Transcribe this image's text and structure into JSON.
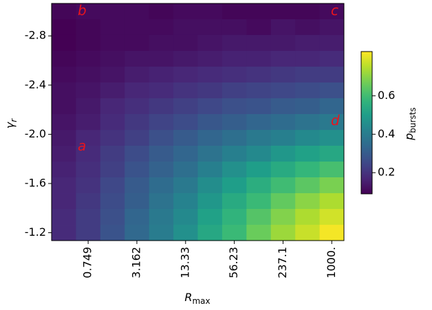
{
  "chart_data": {
    "type": "heatmap",
    "x_label": {
      "text": "R",
      "sub": "max"
    },
    "y_label": {
      "text": "γ",
      "sub": "r"
    },
    "colorbar_label": {
      "text": "p",
      "sub": "bursts"
    },
    "categories": [
      null,
      "0.749",
      null,
      "3.162",
      null,
      "13.33",
      null,
      "56.23",
      null,
      "237.1",
      null,
      "1000."
    ],
    "y": [
      -3.0,
      -2.871,
      -2.743,
      -2.614,
      -2.486,
      -2.357,
      -2.229,
      -2.1,
      -1.971,
      -1.843,
      -1.714,
      -1.586,
      -1.457,
      -1.329,
      -1.2
    ],
    "ylim": [
      -1.136,
      -3.064
    ],
    "yticks": [
      -2.8,
      -2.4,
      {
        "value": -2,
        "label": "-2.0"
      },
      -1.6,
      -1.2
    ],
    "colormap": "viridis",
    "clim": [
      0.09,
      0.83
    ],
    "cticks": [
      0.2,
      0.4,
      0.6
    ],
    "annotations": [
      "a",
      "b",
      "c",
      "d"
    ],
    "values": [
      [
        0.1,
        0.11,
        0.11,
        0.11,
        0.1,
        0.11,
        0.11,
        0.1,
        0.1,
        0.1,
        0.1,
        0.11
      ],
      [
        0.09,
        0.1,
        0.11,
        0.11,
        0.11,
        0.12,
        0.12,
        0.12,
        0.11,
        0.13,
        0.12,
        0.13
      ],
      [
        0.09,
        0.1,
        0.11,
        0.11,
        0.12,
        0.12,
        0.13,
        0.14,
        0.14,
        0.14,
        0.15,
        0.15
      ],
      [
        0.1,
        0.11,
        0.12,
        0.13,
        0.13,
        0.14,
        0.15,
        0.16,
        0.16,
        0.17,
        0.17,
        0.18
      ],
      [
        0.11,
        0.12,
        0.13,
        0.15,
        0.16,
        0.17,
        0.18,
        0.19,
        0.2,
        0.21,
        0.22,
        0.22
      ],
      [
        0.12,
        0.13,
        0.15,
        0.17,
        0.18,
        0.2,
        0.21,
        0.23,
        0.24,
        0.25,
        0.26,
        0.27
      ],
      [
        0.12,
        0.14,
        0.17,
        0.19,
        0.21,
        0.23,
        0.25,
        0.27,
        0.28,
        0.3,
        0.31,
        0.33
      ],
      [
        0.13,
        0.15,
        0.18,
        0.21,
        0.24,
        0.26,
        0.29,
        0.31,
        0.33,
        0.35,
        0.37,
        0.39
      ],
      [
        0.14,
        0.17,
        0.2,
        0.23,
        0.27,
        0.3,
        0.33,
        0.36,
        0.39,
        0.41,
        0.44,
        0.46
      ],
      [
        0.15,
        0.18,
        0.22,
        0.26,
        0.3,
        0.33,
        0.37,
        0.41,
        0.44,
        0.48,
        0.51,
        0.53
      ],
      [
        0.16,
        0.19,
        0.23,
        0.28,
        0.32,
        0.36,
        0.41,
        0.46,
        0.5,
        0.54,
        0.58,
        0.61
      ],
      [
        0.17,
        0.2,
        0.25,
        0.3,
        0.35,
        0.39,
        0.45,
        0.5,
        0.55,
        0.6,
        0.64,
        0.68
      ],
      [
        0.17,
        0.21,
        0.26,
        0.31,
        0.37,
        0.42,
        0.48,
        0.54,
        0.59,
        0.65,
        0.7,
        0.74
      ],
      [
        0.18,
        0.22,
        0.27,
        0.33,
        0.39,
        0.44,
        0.51,
        0.57,
        0.63,
        0.69,
        0.74,
        0.78
      ],
      [
        0.18,
        0.22,
        0.28,
        0.34,
        0.4,
        0.46,
        0.53,
        0.59,
        0.66,
        0.72,
        0.77,
        0.82
      ]
    ]
  }
}
